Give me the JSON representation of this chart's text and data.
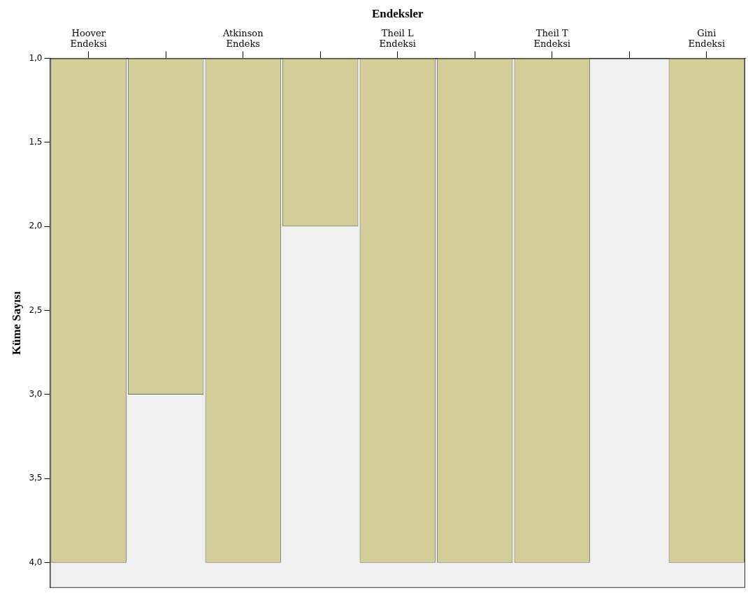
{
  "chart_data": {
    "type": "bar",
    "xlabel": "Endeksler",
    "ylabel": "Küme Sayısı",
    "categories": [
      "Hoover\nEndeksi",
      null,
      "Atkinson\nEndeks",
      null,
      "Theil L\nEndeksi",
      null,
      "Theil T\nEndeksi",
      null,
      "Gini\nEndeksi"
    ],
    "values": [
      4,
      3,
      4,
      2,
      4,
      4,
      4,
      null,
      4
    ],
    "color": "#d3cd97",
    "ylim": [
      4.15,
      1
    ],
    "yticks": [
      {
        "value": 1,
        "label": "1,0"
      },
      {
        "value": 1.5,
        "label": "1,5"
      },
      {
        "value": 2,
        "label": "2,0"
      },
      {
        "value": 2.5,
        "label": "2,5"
      },
      {
        "value": 3,
        "label": "3,0"
      },
      {
        "value": 3.5,
        "label": "3,5"
      },
      {
        "value": 4,
        "label": "4,0"
      }
    ],
    "grid": false,
    "legend": false
  }
}
